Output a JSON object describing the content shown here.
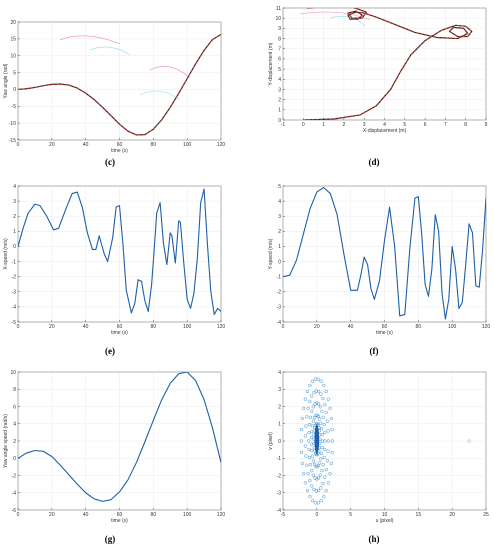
{
  "colors": {
    "line": "#1f5fa8",
    "dashed_red": "#c0392b",
    "dark_line": "#3a1f1f",
    "scatter": "#3b8fd0",
    "ghost_magenta": "#e91e8c",
    "ghost_cyan": "#27c4e0"
  },
  "chart_data": [
    {
      "id": "c",
      "caption": "(c)",
      "type": "line",
      "xlabel": "time (s)",
      "ylabel": "Yaw angle (rad)",
      "xlim": [
        0,
        120
      ],
      "ylim": [
        -15,
        20
      ],
      "xticks": [
        0,
        20,
        40,
        60,
        80,
        100,
        120
      ],
      "yticks": [
        -15,
        -10,
        -5,
        0,
        5,
        10,
        15,
        20
      ],
      "series": [
        {
          "style": "solid-dark",
          "x": [
            0,
            5,
            10,
            15,
            20,
            25,
            30,
            35,
            40,
            45,
            50,
            55,
            60,
            65,
            70,
            75,
            80,
            85,
            90,
            95,
            100,
            105,
            110,
            115,
            120
          ],
          "y": [
            0,
            0.2,
            0.6,
            1.1,
            1.5,
            1.6,
            1.3,
            0.4,
            -1.1,
            -3,
            -5.3,
            -7.8,
            -10.3,
            -12.4,
            -13.5,
            -13.4,
            -11.8,
            -9,
            -5.3,
            -1.2,
            3.2,
            7.6,
            11.6,
            14.8,
            16.3
          ]
        },
        {
          "style": "dashed-red",
          "x": [
            0,
            5,
            10,
            15,
            20,
            25,
            30,
            35,
            40,
            45,
            50,
            55,
            60,
            65,
            70,
            75,
            80,
            85,
            90,
            95,
            100,
            105,
            110,
            115,
            120
          ],
          "y": [
            0,
            0.2,
            0.6,
            1.1,
            1.5,
            1.6,
            1.3,
            0.4,
            -1.1,
            -3,
            -5.3,
            -7.8,
            -10.3,
            -12.4,
            -13.5,
            -13.4,
            -11.8,
            -9,
            -5.3,
            -1.2,
            3.2,
            7.6,
            11.6,
            14.8,
            16.3
          ]
        }
      ]
    },
    {
      "id": "d",
      "caption": "(d)",
      "type": "line",
      "xlabel": "X-displacement (m)",
      "ylabel": "Y-displacement (m)",
      "xlim": [
        -1,
        9
      ],
      "ylim": [
        0,
        11
      ],
      "xticks": [
        -1,
        0,
        1,
        2,
        3,
        4,
        5,
        6,
        7,
        8,
        9
      ],
      "yticks": [
        0,
        1,
        2,
        3,
        4,
        5,
        6,
        7,
        8,
        9,
        10,
        11
      ],
      "series": [
        {
          "style": "solid-dark",
          "x": [
            0,
            1.5,
            2.8,
            3.6,
            4.3,
            4.8,
            5.3,
            6.0,
            6.8,
            7.5,
            8.0,
            8.3,
            8.1,
            7.6,
            7.2,
            7.4,
            7.9,
            8.1,
            7.6,
            6.6,
            5.5,
            4.5,
            3.6,
            3.0,
            2.6,
            2.2,
            2.3,
            2.7,
            2.9,
            2.6,
            2.2,
            2.4,
            2.9,
            3.1,
            2.4,
            1.6,
            0.8,
            0.2
          ],
          "y": [
            0,
            0.1,
            0.5,
            1.4,
            3.0,
            4.8,
            6.4,
            7.8,
            8.8,
            9.3,
            9.2,
            8.7,
            8.2,
            8.2,
            8.7,
            9.1,
            9.0,
            8.5,
            8.0,
            8.1,
            8.6,
            9.4,
            10.1,
            10.5,
            10.6,
            10.3,
            9.9,
            9.9,
            10.3,
            10.7,
            10.5,
            10.0,
            10.0,
            10.6,
            11.1,
            11.2,
            11.1,
            11.0
          ]
        },
        {
          "style": "dashed-red",
          "x": [
            0,
            1.5,
            2.8,
            3.6,
            4.3,
            4.8,
            5.3,
            6.0,
            6.8,
            7.5,
            8.0,
            8.3,
            8.1,
            7.6,
            7.2,
            7.4,
            7.9,
            8.1,
            7.6,
            6.6,
            5.5,
            4.5,
            3.6,
            3.0,
            2.6,
            2.2,
            2.3,
            2.7,
            2.9,
            2.6,
            2.2,
            2.4,
            2.9,
            3.1,
            2.4,
            1.6,
            0.8,
            0.2
          ],
          "y": [
            0,
            0.1,
            0.5,
            1.4,
            3.0,
            4.8,
            6.4,
            7.8,
            8.8,
            9.3,
            9.2,
            8.7,
            8.2,
            8.2,
            8.7,
            9.1,
            9.0,
            8.5,
            8.0,
            8.1,
            8.6,
            9.4,
            10.1,
            10.5,
            10.6,
            10.3,
            9.9,
            9.9,
            10.3,
            10.7,
            10.5,
            10.0,
            10.0,
            10.6,
            11.1,
            11.2,
            11.1,
            11.0
          ]
        }
      ]
    },
    {
      "id": "e",
      "caption": "(e)",
      "type": "line",
      "xlabel": "time (s)",
      "ylabel": "X-speed (m/s)",
      "xlim": [
        0,
        120
      ],
      "ylim": [
        -5,
        4
      ],
      "xticks": [
        0,
        20,
        40,
        60,
        80,
        100,
        120
      ],
      "yticks": [
        -5,
        -4,
        -3,
        -2,
        -1,
        0,
        1,
        2,
        3,
        4
      ],
      "series": [
        {
          "style": "solid-blue",
          "x": [
            0,
            3,
            6,
            10,
            13,
            17,
            21,
            24,
            28,
            32,
            35,
            38,
            41,
            44,
            46,
            48,
            51,
            53,
            56,
            58,
            60,
            62,
            64,
            67,
            69,
            71,
            73,
            75,
            77,
            79,
            80,
            82,
            84,
            86,
            88,
            90,
            91,
            93,
            95,
            96,
            98,
            100,
            102,
            104,
            106,
            108,
            110,
            112,
            114,
            116,
            118,
            120
          ],
          "y": [
            0,
            1.2,
            2.2,
            2.8,
            2.7,
            2.0,
            1.1,
            1.2,
            2.4,
            3.5,
            3.6,
            2.6,
            0.9,
            -0.2,
            -0.2,
            0.7,
            -0.5,
            -1.0,
            0.6,
            2.6,
            2.7,
            0.2,
            -2.9,
            -4.4,
            -3.8,
            -2.2,
            -2.3,
            -3.6,
            -4.3,
            -2.5,
            -1.0,
            2.2,
            2.9,
            0.2,
            -1.2,
            0.9,
            0.7,
            -1.1,
            1.7,
            1.6,
            -1.1,
            -3.5,
            -4.1,
            -3.1,
            -0.8,
            2.9,
            3.8,
            0.1,
            -3.0,
            -4.5,
            -4.1,
            -4.3
          ]
        }
      ]
    },
    {
      "id": "f",
      "caption": "(f)",
      "type": "line",
      "xlabel": "time (s)",
      "ylabel": "Y-speed (m/s)",
      "xlim": [
        0,
        120
      ],
      "ylim": [
        -4,
        5
      ],
      "xticks": [
        0,
        20,
        40,
        60,
        80,
        100,
        120
      ],
      "yticks": [
        -4,
        -3,
        -2,
        -1,
        0,
        1,
        2,
        3,
        4,
        5
      ],
      "series": [
        {
          "style": "solid-blue",
          "x": [
            0,
            4,
            8,
            12,
            16,
            20,
            24,
            28,
            32,
            36,
            40,
            44,
            46,
            48,
            50,
            52,
            54,
            57,
            60,
            63,
            66,
            69,
            72,
            75,
            78,
            80,
            82,
            84,
            86,
            88,
            90,
            92,
            94,
            96,
            98,
            100,
            102,
            104,
            106,
            108,
            110,
            112,
            114,
            116,
            118,
            120
          ],
          "y": [
            -1,
            -0.9,
            0.1,
            1.8,
            3.5,
            4.6,
            4.9,
            4.5,
            3.1,
            0.5,
            -1.9,
            -1.9,
            -0.9,
            0.3,
            -0.2,
            -1.8,
            -2.5,
            -1.3,
            1.4,
            3.6,
            1.0,
            -3.6,
            -3.5,
            0.9,
            4.2,
            4.3,
            1.8,
            -1.5,
            -2.3,
            -0.5,
            3.1,
            2.0,
            -2.1,
            -3.8,
            -2.5,
            1.0,
            -0.5,
            -3.1,
            -2.7,
            -0.2,
            2.5,
            1.9,
            -1.6,
            -1.7,
            0.8,
            4.2
          ]
        }
      ]
    },
    {
      "id": "g",
      "caption": "(g)",
      "type": "line",
      "xlabel": "time (s)",
      "ylabel": "Yaw angle speed (rad/s)",
      "xlim": [
        0,
        120
      ],
      "ylim": [
        -6,
        10
      ],
      "xticks": [
        0,
        20,
        40,
        60,
        80,
        100,
        120
      ],
      "yticks": [
        -6,
        -4,
        -2,
        0,
        2,
        4,
        6,
        8,
        10
      ],
      "series": [
        {
          "style": "solid-blue",
          "x": [
            0,
            5,
            10,
            15,
            20,
            25,
            30,
            35,
            40,
            45,
            50,
            55,
            60,
            65,
            70,
            75,
            80,
            85,
            90,
            95,
            100,
            105,
            110,
            115,
            120
          ],
          "y": [
            0,
            0.6,
            0.9,
            0.8,
            0.2,
            -0.8,
            -1.9,
            -3.0,
            -4.0,
            -4.7,
            -5.0,
            -4.8,
            -3.9,
            -2.5,
            -0.5,
            1.9,
            4.4,
            6.8,
            8.7,
            9.8,
            10.0,
            9.0,
            6.8,
            3.5,
            -0.5
          ]
        }
      ]
    },
    {
      "id": "h",
      "caption": "(h)",
      "type": "scatter",
      "xlabel": "u (pixel)",
      "ylabel": "v (pixel)",
      "xlim": [
        -5,
        25
      ],
      "ylim": [
        -4,
        4
      ],
      "xticks": [
        -5,
        0,
        5,
        10,
        15,
        20,
        25
      ],
      "yticks": [
        -4,
        -3,
        -2,
        -1,
        0,
        1,
        2,
        3,
        4
      ],
      "ellipses": [
        {
          "cx": 0,
          "cy": 0,
          "rx": 2.3,
          "ry": 3.6
        },
        {
          "cx": 0,
          "cy": 0,
          "rx": 1.7,
          "ry": 2.9
        },
        {
          "cx": 0,
          "cy": 0,
          "rx": 1.2,
          "ry": 2.2
        },
        {
          "cx": 0,
          "cy": 0,
          "rx": 0.8,
          "ry": 1.5
        },
        {
          "cx": 0,
          "cy": 0.1,
          "rx": 0.45,
          "ry": 0.9
        }
      ],
      "outlier": {
        "x": 22.5,
        "y": 0
      }
    }
  ]
}
